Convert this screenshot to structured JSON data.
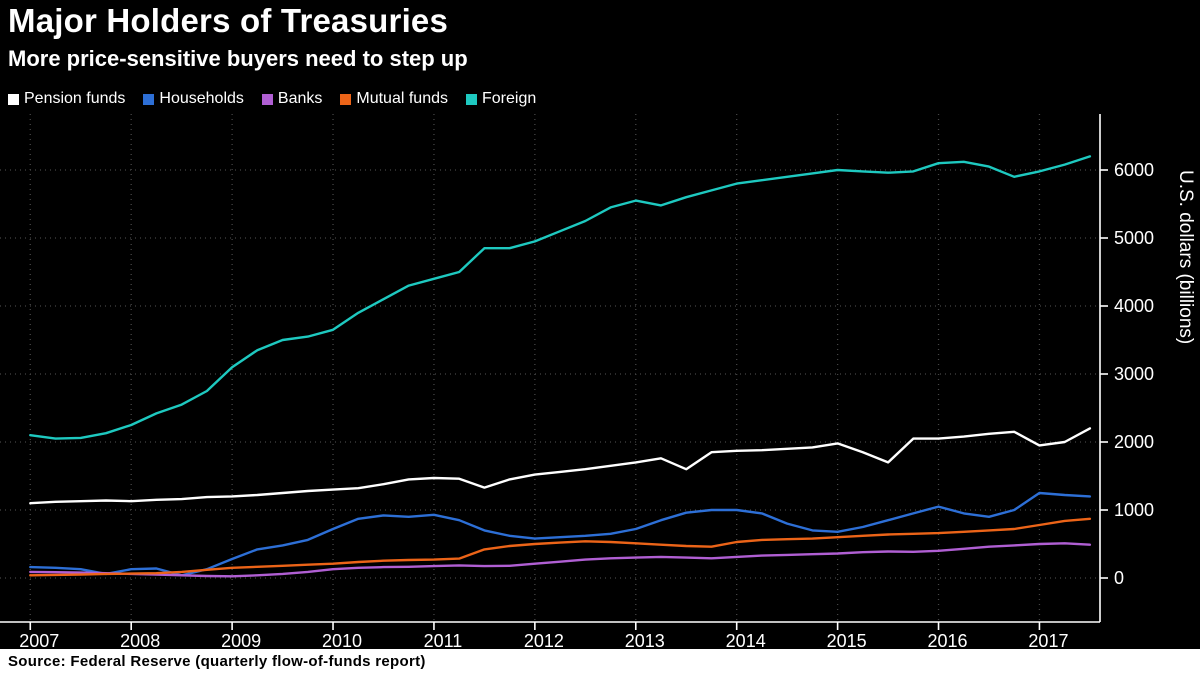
{
  "header": {
    "title": "Major Holders of Treasuries",
    "subtitle": "More price-sensitive buyers need to step up"
  },
  "y_axis_label": "U.S. dollars (billions)",
  "source": "Source: Federal Reserve (quarterly flow-of-funds report)",
  "colors": {
    "background": "#000000",
    "grid": "#454545",
    "axis": "#ffffff"
  },
  "chart_data": {
    "type": "line",
    "title": "Major Holders of Treasuries",
    "subtitle": "More price-sensitive buyers need to step up",
    "ylabel": "U.S. dollars (billions)",
    "x_unit": "year (quarterly observations)",
    "x_start": 2007.0,
    "x_step": 0.25,
    "xlim": [
      2006.7,
      2017.6
    ],
    "ylim": [
      0,
      6800
    ],
    "grid": "dotted",
    "legend_position": "top-left",
    "xticks": [
      2007,
      2008,
      2009,
      2010,
      2011,
      2012,
      2013,
      2014,
      2015,
      2016,
      2017
    ],
    "yticks": [
      0,
      1000,
      2000,
      3000,
      4000,
      5000,
      6000
    ],
    "series": [
      {
        "name": "Pension funds",
        "color": "#ffffff",
        "values": [
          1100,
          1120,
          1130,
          1140,
          1130,
          1150,
          1160,
          1190,
          1200,
          1220,
          1250,
          1280,
          1300,
          1320,
          1380,
          1450,
          1470,
          1460,
          1330,
          1450,
          1520,
          1560,
          1600,
          1650,
          1700,
          1760,
          1600,
          1850,
          1870,
          1880,
          1900,
          1920,
          1980,
          1850,
          1700,
          2050,
          2050,
          2080,
          2120,
          2150,
          1950,
          2000,
          2200
        ]
      },
      {
        "name": "Households",
        "color": "#2d6fd6",
        "values": [
          160,
          150,
          130,
          60,
          130,
          140,
          40,
          130,
          280,
          420,
          480,
          560,
          720,
          870,
          920,
          900,
          930,
          850,
          700,
          620,
          580,
          600,
          620,
          650,
          720,
          850,
          960,
          1000,
          1000,
          950,
          800,
          700,
          680,
          750,
          850,
          950,
          1050,
          950,
          900,
          1000,
          1250,
          1220,
          1200
        ]
      },
      {
        "name": "Banks",
        "color": "#b05fd3",
        "values": [
          90,
          85,
          80,
          70,
          60,
          50,
          40,
          30,
          25,
          40,
          60,
          90,
          130,
          150,
          160,
          165,
          175,
          185,
          175,
          180,
          210,
          240,
          270,
          290,
          300,
          310,
          300,
          290,
          310,
          330,
          340,
          350,
          360,
          380,
          390,
          385,
          400,
          430,
          460,
          480,
          500,
          510,
          490
        ]
      },
      {
        "name": "Mutual funds",
        "color": "#ec6418",
        "values": [
          40,
          45,
          50,
          60,
          65,
          70,
          90,
          120,
          150,
          165,
          180,
          195,
          210,
          235,
          255,
          265,
          270,
          285,
          420,
          470,
          500,
          520,
          540,
          530,
          510,
          490,
          470,
          460,
          530,
          560,
          570,
          580,
          600,
          620,
          640,
          650,
          660,
          680,
          700,
          720,
          780,
          840,
          870
        ]
      },
      {
        "name": "Foreign",
        "color": "#1ec9c0",
        "values": [
          2100,
          2050,
          2060,
          2130,
          2250,
          2420,
          2550,
          2750,
          3100,
          3350,
          3500,
          3550,
          3650,
          3900,
          4100,
          4300,
          4400,
          4500,
          4850,
          4850,
          4950,
          5100,
          5250,
          5450,
          5550,
          5480,
          5600,
          5700,
          5800,
          5850,
          5900,
          5950,
          6000,
          5980,
          5960,
          5980,
          6100,
          6120,
          6050,
          5900,
          5980,
          6080,
          6200
        ]
      }
    ]
  }
}
